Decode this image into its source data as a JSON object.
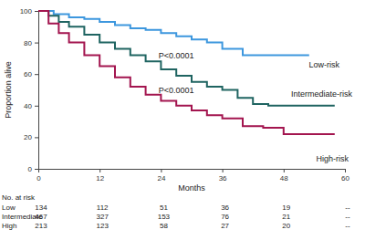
{
  "chart_data": {
    "type": "line",
    "x_label": "Months",
    "y_label": "Proportion alive",
    "xlim": [
      0,
      60
    ],
    "ylim": [
      0,
      100
    ],
    "xticks": [
      0,
      12,
      24,
      36,
      48,
      60
    ],
    "yticks": [
      0,
      20,
      40,
      60,
      80,
      100
    ],
    "grid": false,
    "line_style": "step",
    "series": [
      {
        "name": "Low-risk",
        "color": "#3d97de",
        "x": [
          0,
          3,
          6,
          9,
          12,
          15,
          18,
          21,
          24,
          27,
          30,
          33,
          36,
          40,
          44,
          53
        ],
        "values": [
          100,
          98,
          96,
          95,
          93,
          91,
          89,
          88,
          86,
          84,
          82,
          80,
          76,
          72,
          72,
          72
        ]
      },
      {
        "name": "Intermediate-risk",
        "color": "#1f6461",
        "x": [
          0,
          2,
          4,
          6,
          9,
          12,
          15,
          18,
          21,
          24,
          27,
          30,
          33,
          36,
          39,
          42,
          45,
          58
        ],
        "values": [
          100,
          97,
          93,
          90,
          85,
          80,
          76,
          72,
          68,
          63,
          59,
          55,
          52,
          50,
          45,
          41,
          40,
          40
        ]
      },
      {
        "name": "High-risk",
        "color": "#a3154f",
        "x": [
          0,
          2,
          4,
          6,
          9,
          12,
          15,
          18,
          21,
          24,
          27,
          30,
          33,
          36,
          40,
          44,
          48,
          58
        ],
        "values": [
          100,
          92,
          86,
          80,
          72,
          65,
          58,
          52,
          47,
          43,
          40,
          37,
          34,
          32,
          27,
          26,
          22,
          22
        ]
      }
    ],
    "annotations": [
      "P<0.0001",
      "P<0.0001"
    ],
    "at_risk": {
      "title": "No. at risk",
      "rows": [
        {
          "label": "Low",
          "values": [
            134,
            112,
            51,
            36,
            19,
            "--"
          ]
        },
        {
          "label": "Intermediate",
          "values": [
            467,
            327,
            153,
            76,
            21,
            "--"
          ]
        },
        {
          "label": "High",
          "values": [
            213,
            123,
            58,
            27,
            20,
            "--"
          ]
        }
      ]
    }
  }
}
